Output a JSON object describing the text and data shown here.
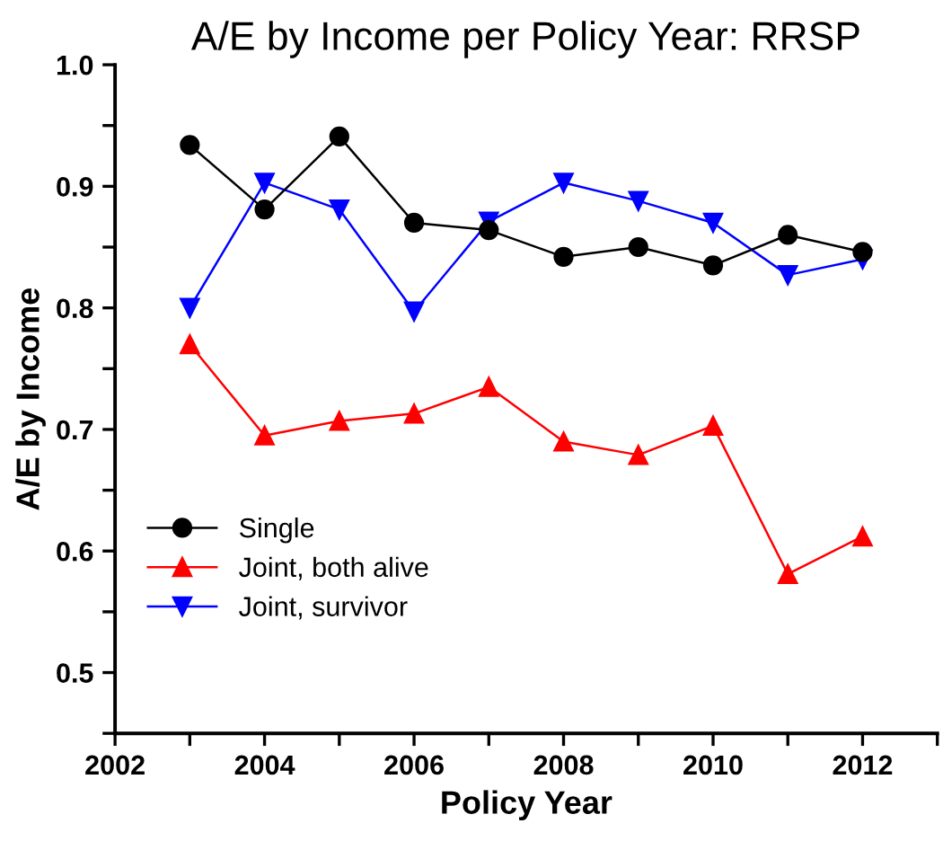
{
  "chart_data": {
    "type": "line",
    "title": "A/E by Income per Policy Year: RRSP",
    "xlabel": "Policy Year",
    "ylabel": "A/E by Income",
    "x": [
      2003,
      2004,
      2005,
      2006,
      2007,
      2008,
      2009,
      2010,
      2011,
      2012
    ],
    "series": [
      {
        "name": "Single",
        "color": "#000000",
        "marker": "circle",
        "values": [
          0.934,
          0.881,
          0.941,
          0.87,
          0.864,
          0.842,
          0.85,
          0.835,
          0.86,
          0.846
        ]
      },
      {
        "name": "Joint, both alive",
        "color": "#ff0000",
        "marker": "triangle",
        "values": [
          0.77,
          0.695,
          0.707,
          0.713,
          0.735,
          0.69,
          0.679,
          0.703,
          0.581,
          0.612
        ]
      },
      {
        "name": "Joint, survivor",
        "color": "#0000ff",
        "marker": "triangle-down",
        "values": [
          0.8,
          0.903,
          0.881,
          0.797,
          0.871,
          0.903,
          0.888,
          0.87,
          0.827,
          0.84
        ]
      }
    ],
    "xlim": [
      2002,
      2013
    ],
    "ylim": [
      0.45,
      1.0
    ],
    "xticks": [
      2002,
      {
        "value": 2003,
        "label": null
      },
      2004,
      {
        "value": 2005,
        "label": null
      },
      2006,
      {
        "value": 2007,
        "label": null
      },
      2008,
      {
        "value": 2009,
        "label": null
      },
      2010,
      {
        "value": 2011,
        "label": null
      },
      2012,
      {
        "value": 2013,
        "label": null
      }
    ],
    "yticks": [
      {
        "value": 0.45,
        "label": null
      },
      {
        "value": 0.5,
        "label": "0.5"
      },
      {
        "value": 0.55,
        "label": null
      },
      {
        "value": 0.6,
        "label": "0.6"
      },
      {
        "value": 0.65,
        "label": null
      },
      {
        "value": 0.7,
        "label": "0.7"
      },
      {
        "value": 0.75,
        "label": null
      },
      {
        "value": 0.8,
        "label": "0.8"
      },
      {
        "value": 0.85,
        "label": null
      },
      {
        "value": 0.9,
        "label": "0.9"
      },
      {
        "value": 0.95,
        "label": null
      },
      {
        "value": 1.0,
        "label": "1.0"
      }
    ],
    "grid": false,
    "legend": "bottom left",
    "line_style": "solid"
  }
}
